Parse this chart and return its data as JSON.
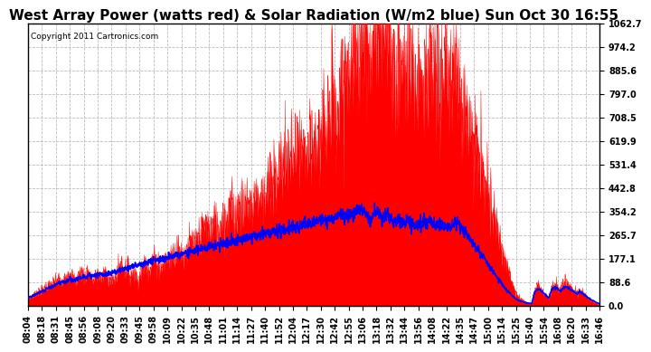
{
  "title": "West Array Power (watts red) & Solar Radiation (W/m2 blue) Sun Oct 30 16:55",
  "copyright": "Copyright 2011 Cartronics.com",
  "ymax": 1062.7,
  "ytick_labels": [
    "0.0",
    "88.6",
    "177.1",
    "265.7",
    "354.2",
    "442.8",
    "531.4",
    "619.9",
    "708.5",
    "797.0",
    "885.6",
    "974.2",
    "1062.7"
  ],
  "ytick_vals": [
    0.0,
    88.6,
    177.1,
    265.7,
    354.2,
    442.8,
    531.4,
    619.9,
    708.5,
    797.0,
    885.6,
    974.2,
    1062.7
  ],
  "xtick_labels": [
    "08:04",
    "08:18",
    "08:31",
    "08:45",
    "08:56",
    "09:08",
    "09:20",
    "09:33",
    "09:45",
    "09:58",
    "10:09",
    "10:22",
    "10:35",
    "10:48",
    "11:01",
    "11:14",
    "11:27",
    "11:40",
    "11:52",
    "12:04",
    "12:17",
    "12:30",
    "12:42",
    "12:55",
    "13:06",
    "13:18",
    "13:32",
    "13:44",
    "13:56",
    "14:08",
    "14:22",
    "14:35",
    "14:47",
    "15:00",
    "15:14",
    "15:25",
    "15:40",
    "15:54",
    "16:08",
    "16:20",
    "16:33",
    "16:46"
  ],
  "bg_color": "#ffffff",
  "grid_color": "#bbbbbb",
  "power_fill_color": "red",
  "radiation_line_color": "blue",
  "title_fontsize": 11,
  "tick_fontsize": 7,
  "power_values": [
    30,
    35,
    40,
    50,
    55,
    60,
    70,
    75,
    80,
    90,
    95,
    100,
    80,
    110,
    120,
    130,
    100,
    90,
    120,
    130,
    100,
    140,
    110,
    90,
    120,
    115,
    100,
    130,
    110,
    100,
    90,
    110,
    140,
    160,
    130,
    150,
    110,
    130,
    120,
    100,
    130,
    160,
    150,
    140,
    180,
    170,
    160,
    140,
    160,
    180,
    170,
    200,
    190,
    220,
    200,
    190,
    210,
    230,
    240,
    220,
    250,
    270,
    290,
    310,
    280,
    300,
    320,
    280,
    310,
    340,
    320,
    350,
    370,
    330,
    360,
    380,
    350,
    380,
    400,
    370,
    410,
    430,
    400,
    440,
    420,
    460,
    440,
    480,
    500,
    520,
    540,
    560,
    540,
    580,
    560,
    600,
    580,
    560,
    580,
    560,
    590,
    580,
    600,
    620,
    640,
    680,
    700,
    720,
    700,
    750,
    780,
    810,
    850,
    870,
    890,
    910,
    960,
    1000,
    1040,
    1060,
    980,
    900,
    1040,
    1060,
    1020,
    980,
    1040,
    1060,
    950,
    900,
    850,
    920,
    900,
    860,
    920,
    900,
    860,
    820,
    880,
    920,
    900,
    860,
    900,
    880,
    850,
    880,
    860,
    840,
    860,
    840,
    880,
    900,
    860,
    800,
    760,
    720,
    680,
    640,
    600,
    560,
    520,
    480,
    440,
    400,
    360,
    320,
    280,
    240,
    200,
    160,
    120,
    80,
    60,
    40,
    30,
    20,
    15,
    10,
    8,
    60,
    80,
    70,
    50,
    40,
    30,
    70,
    80,
    70,
    60,
    80,
    90,
    80,
    70,
    60,
    50,
    60,
    50,
    40,
    30,
    20,
    15,
    10,
    5
  ],
  "radiation_values": [
    30,
    35,
    40,
    45,
    50,
    55,
    60,
    65,
    70,
    75,
    80,
    85,
    90,
    90,
    95,
    100,
    95,
    100,
    105,
    108,
    110,
    112,
    115,
    110,
    115,
    118,
    120,
    118,
    120,
    122,
    125,
    128,
    130,
    135,
    138,
    140,
    145,
    148,
    150,
    152,
    155,
    158,
    162,
    165,
    168,
    170,
    172,
    175,
    178,
    180,
    182,
    185,
    188,
    190,
    192,
    195,
    198,
    200,
    205,
    208,
    210,
    215,
    218,
    220,
    222,
    225,
    228,
    230,
    232,
    235,
    238,
    240,
    242,
    245,
    248,
    250,
    252,
    255,
    258,
    260,
    262,
    265,
    268,
    270,
    272,
    275,
    278,
    280,
    282,
    285,
    288,
    290,
    292,
    295,
    298,
    300,
    302,
    305,
    308,
    310,
    312,
    315,
    318,
    320,
    322,
    325,
    328,
    330,
    332,
    335,
    338,
    340,
    342,
    345,
    348,
    350,
    352,
    355,
    358,
    360,
    340,
    320,
    350,
    355,
    340,
    330,
    345,
    355,
    330,
    320,
    310,
    320,
    315,
    310,
    318,
    315,
    310,
    305,
    312,
    318,
    315,
    310,
    318,
    315,
    310,
    308,
    305,
    300,
    298,
    295,
    300,
    308,
    305,
    295,
    285,
    270,
    255,
    240,
    225,
    210,
    195,
    180,
    165,
    150,
    135,
    120,
    105,
    90,
    75,
    60,
    50,
    40,
    30,
    22,
    18,
    15,
    12,
    10,
    8,
    50,
    65,
    60,
    50,
    40,
    30,
    60,
    70,
    65,
    55,
    65,
    72,
    68,
    60,
    52,
    45,
    55,
    45,
    38,
    30,
    22,
    18,
    12,
    8
  ]
}
